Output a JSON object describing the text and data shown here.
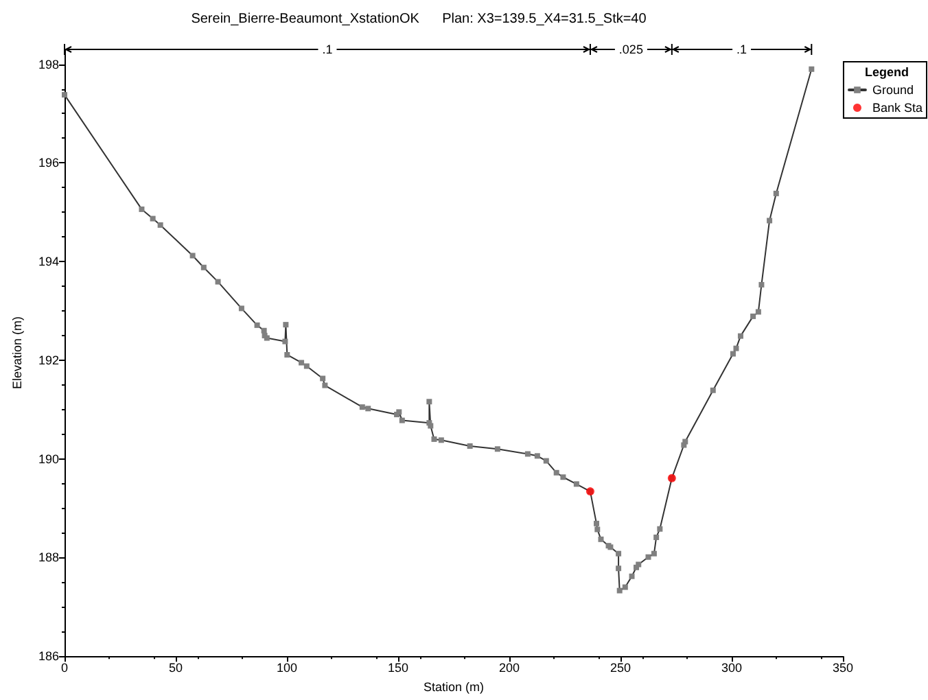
{
  "chart_data": {
    "type": "line",
    "title": "Serein_Bierre-Beaumont_XstationOK      Plan: X3=139.5_X4=31.5_Stk=40",
    "xlabel": "Station (m)",
    "ylabel": "Elevation (m)",
    "legend_title": "Legend",
    "series": [
      {
        "name": "Ground",
        "color": "#808080",
        "marker": "square",
        "x": [
          0,
          34.7,
          39.7,
          43.1,
          57.6,
          62.6,
          69.0,
          79.6,
          86.6,
          89.7,
          90.0,
          91.0,
          99.2,
          99.5,
          100.1,
          106.5,
          108.9,
          116.1,
          117.1,
          133.9,
          136.5,
          149.4,
          150.4,
          151.8,
          164.0,
          164.0,
          164.6,
          166.2,
          169.4,
          182.3,
          194.7,
          208.3,
          212.6,
          216.6,
          221.2,
          224.2,
          230.2,
          236.4,
          239.2,
          239.6,
          241.2,
          244.6,
          245.5,
          249.1,
          249.1,
          249.6,
          252.1,
          255.1,
          257.1,
          258.1,
          262.5,
          265.1,
          266.1,
          267.7,
          273.1,
          278.5,
          279.1,
          291.6,
          300.6,
          302.0,
          304.0,
          309.6,
          312.0,
          313.4,
          317.0,
          320.0,
          335.9
        ],
        "values": [
          197.38,
          195.06,
          194.87,
          194.74,
          194.12,
          193.88,
          193.59,
          193.05,
          192.71,
          192.6,
          192.5,
          192.45,
          192.38,
          192.72,
          192.11,
          191.95,
          191.88,
          191.63,
          191.49,
          191.05,
          191.02,
          190.9,
          190.95,
          190.78,
          190.73,
          191.16,
          190.67,
          190.4,
          190.38,
          190.26,
          190.2,
          190.1,
          190.06,
          189.96,
          189.72,
          189.63,
          189.49,
          189.34,
          188.69,
          188.57,
          188.37,
          188.24,
          188.21,
          188.08,
          187.78,
          187.33,
          187.4,
          187.62,
          187.8,
          187.86,
          188.01,
          188.08,
          188.41,
          188.58,
          189.61,
          190.28,
          190.35,
          191.39,
          192.13,
          192.24,
          192.49,
          192.89,
          192.98,
          193.53,
          194.83,
          195.38,
          197.9
        ]
      },
      {
        "name": "Bank Sta",
        "type": "scatter",
        "color": "#ff0000",
        "marker": "circle",
        "x": [
          236.4,
          273.1
        ],
        "values": [
          189.34,
          189.61
        ]
      }
    ],
    "annotations": [
      ".1",
      ".025",
      ".1"
    ],
    "xlim": [
      0,
      350
    ],
    "xticks": [
      0,
      50,
      100,
      150,
      200,
      250,
      300,
      350
    ],
    "ylim": [
      186,
      198.3
    ],
    "yticks": [
      186,
      188,
      190,
      192,
      194,
      196,
      198
    ],
    "grid": false,
    "legend": "top right"
  }
}
